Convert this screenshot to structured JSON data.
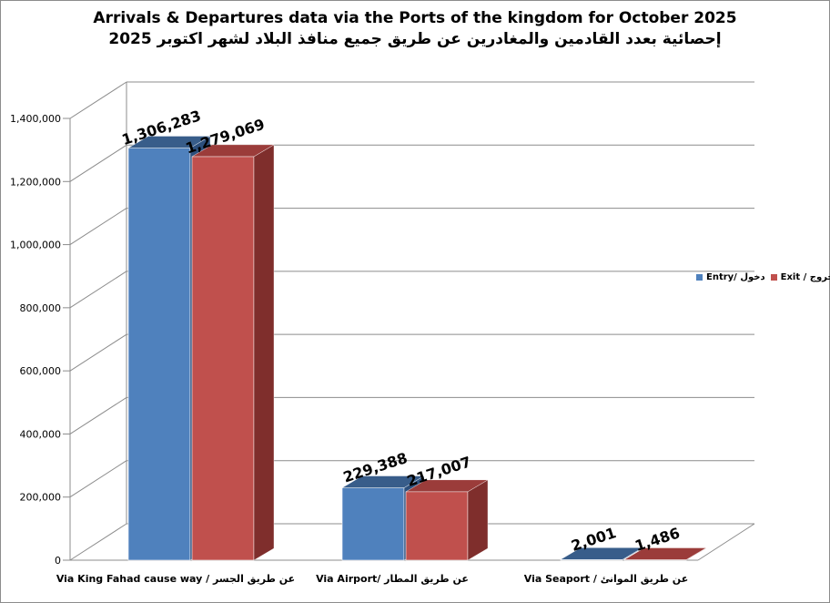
{
  "chart_data": {
    "type": "bar",
    "title": "Arrivals & Departures data via the Ports of the kingdom for October 2025",
    "subtitle": "إحصائية بعدد القادمين والمغادرين عن طريق جميع منافذ البلاد لشهر اكتوبر 2025",
    "categories": [
      "Via King Fahad cause way / عن طريق الجسر",
      "Via Airport/ عن طريق المطار",
      "Via Seaport / عن طريق الموانئ"
    ],
    "series": [
      {
        "name": "Entry/ دخول",
        "values": [
          1306283,
          229388,
          2001
        ],
        "labels": [
          "1,306,283",
          "229,388",
          "2,001"
        ]
      },
      {
        "name": "Exit / خروج",
        "values": [
          1279069,
          217007,
          1486
        ],
        "labels": [
          "1,279,069",
          "217,007",
          "1,486"
        ]
      }
    ],
    "ylim": [
      0,
      1400000
    ],
    "yticks": [
      "0",
      "200,000",
      "400,000",
      "600,000",
      "800,000",
      "1,000,000",
      "1,200,000",
      "1,400,000"
    ],
    "ytick_values": [
      0,
      200000,
      400000,
      600000,
      800000,
      1000000,
      1200000,
      1400000
    ],
    "grid": true,
    "legend_position": "right",
    "colors": {
      "entry_front": "#4f81bd",
      "entry_side": "#2c4f7c",
      "entry_top": "#385d8a",
      "exit_front": "#c0504d",
      "exit_side": "#7f2e2c",
      "exit_top": "#9b3c3a",
      "grid": "#8c8c8c"
    }
  }
}
